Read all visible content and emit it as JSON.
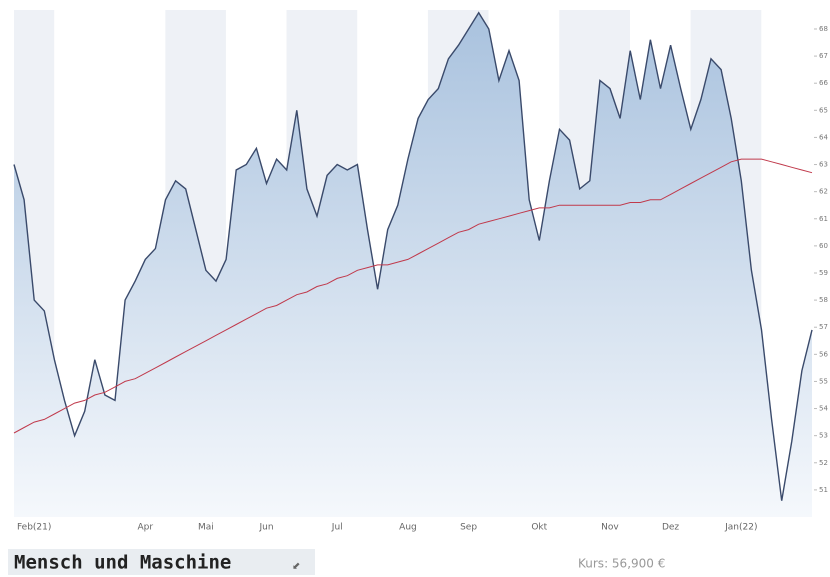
{
  "chart_data": {
    "type": "area",
    "title": "Mensch und Maschine",
    "price_label": "Kurs: 56,900 €",
    "categories": [
      null,
      null,
      "Feb(21)",
      null,
      null,
      null,
      null,
      null,
      null,
      null,
      null,
      null,
      null,
      "Apr",
      null,
      null,
      null,
      null,
      null,
      "Mai",
      null,
      null,
      null,
      null,
      null,
      "Jun",
      null,
      null,
      null,
      null,
      null,
      null,
      "Jul",
      null,
      null,
      null,
      null,
      null,
      null,
      "Aug",
      null,
      null,
      null,
      null,
      null,
      "Sep",
      null,
      null,
      null,
      null,
      null,
      null,
      "Okt",
      null,
      null,
      null,
      null,
      null,
      null,
      "Nov",
      null,
      null,
      null,
      null,
      null,
      "Dez",
      null,
      null,
      null,
      null,
      null,
      null,
      "Jan(22)",
      null,
      null,
      null,
      null,
      null,
      null,
      null
    ],
    "series": [
      {
        "color": "#3a4a6b",
        "fill": "#b9cde4",
        "values": [
          63.0,
          61.7,
          58.0,
          57.6,
          55.8,
          54.3,
          53.0,
          53.9,
          55.8,
          54.5,
          54.3,
          58.0,
          58.7,
          59.5,
          59.9,
          61.7,
          62.4,
          62.1,
          60.6,
          59.1,
          58.7,
          59.5,
          62.8,
          63.0,
          63.6,
          62.3,
          63.2,
          62.8,
          65.0,
          62.1,
          61.1,
          62.6,
          63.0,
          62.8,
          63.0,
          60.6,
          58.4,
          60.6,
          61.5,
          63.2,
          64.7,
          65.4,
          65.8,
          66.9,
          67.4,
          68.0,
          68.6,
          68.0,
          66.1,
          67.2,
          66.1,
          61.7,
          60.2,
          62.4,
          64.3,
          63.9,
          62.1,
          62.4,
          66.1,
          65.8,
          64.7,
          67.2,
          65.4,
          67.6,
          65.8,
          67.4,
          65.8,
          64.3,
          65.4,
          66.9,
          66.5,
          64.7,
          62.4,
          59.1,
          56.9,
          53.6,
          50.6,
          52.8,
          55.4,
          56.9
        ]
      },
      {
        "color": "#c0394b",
        "values": [
          53.1,
          53.3,
          53.5,
          53.6,
          53.8,
          54.0,
          54.2,
          54.3,
          54.5,
          54.6,
          54.8,
          55.0,
          55.1,
          55.3,
          55.5,
          55.7,
          55.9,
          56.1,
          56.3,
          56.5,
          56.7,
          56.9,
          57.1,
          57.3,
          57.5,
          57.7,
          57.8,
          58.0,
          58.2,
          58.3,
          58.5,
          58.6,
          58.8,
          58.9,
          59.1,
          59.2,
          59.3,
          59.3,
          59.4,
          59.5,
          59.7,
          59.9,
          60.1,
          60.3,
          60.5,
          60.6,
          60.8,
          60.9,
          61.0,
          61.1,
          61.2,
          61.3,
          61.4,
          61.4,
          61.5,
          61.5,
          61.5,
          61.5,
          61.5,
          61.5,
          61.5,
          61.6,
          61.6,
          61.7,
          61.7,
          61.9,
          62.1,
          62.3,
          62.5,
          62.7,
          62.9,
          63.1,
          63.2,
          63.2,
          63.2,
          63.1,
          63.0,
          62.9,
          62.8,
          62.7
        ]
      }
    ],
    "ylim": [
      50,
      68.7
    ],
    "yticks": [
      51,
      52,
      53,
      54,
      55,
      56,
      57,
      58,
      59,
      60,
      61,
      62,
      63,
      64,
      65,
      66,
      67,
      68
    ],
    "band_color": "#eef1f6"
  }
}
